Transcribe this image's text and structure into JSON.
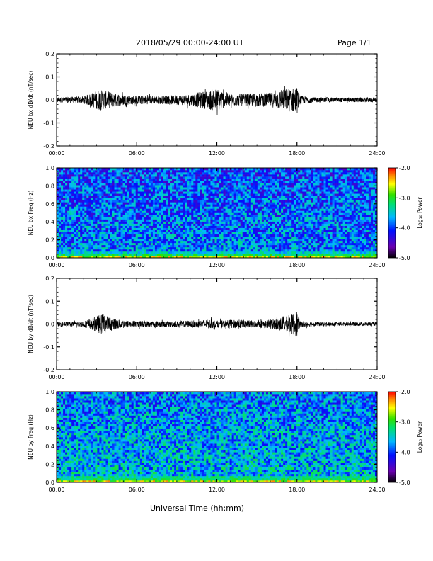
{
  "header": {
    "title": "2018/05/29  00:00-24:00 UT",
    "page": "Page 1/1",
    "xlabel": "Universal Time (hh:mm)"
  },
  "chart_data": [
    {
      "type": "line",
      "ylabel": "NEU bx dB/dt (nT/sec)",
      "xlim": [
        "00:00",
        "24:00"
      ],
      "xticks": [
        "00:00",
        "06:00",
        "12:00",
        "18:00",
        "24:00"
      ],
      "ylim": [
        -0.2,
        0.2
      ],
      "yticks": [
        "-0.2",
        "-0.1",
        "0.0",
        "0.1",
        "0.2"
      ],
      "color": "#000000",
      "envelope": {
        "hours": [
          0,
          2,
          3.2,
          3.6,
          4.4,
          5.5,
          8,
          10,
          11.2,
          12,
          12.6,
          13.5,
          15,
          16,
          17.3,
          17.8,
          18,
          18.2,
          19,
          21,
          24
        ],
        "amplitude": [
          0.012,
          0.015,
          0.045,
          0.04,
          0.03,
          0.02,
          0.018,
          0.025,
          0.04,
          0.05,
          0.035,
          0.025,
          0.03,
          0.03,
          0.05,
          0.055,
          0.06,
          0.02,
          0.012,
          0.01,
          0.01
        ]
      }
    },
    {
      "type": "heatmap",
      "ylabel": "NEU bx Freq (Hz)",
      "xlim": [
        "00:00",
        "24:00"
      ],
      "xticks": [
        "00:00",
        "06:00",
        "12:00",
        "18:00",
        "24:00"
      ],
      "ylim": [
        0.0,
        1.0
      ],
      "yticks": [
        "0.0",
        "0.2",
        "0.4",
        "0.6",
        "0.8",
        "1.0"
      ],
      "colorbar": {
        "label": "Log₁₀ Power",
        "range": [
          -5.0,
          -2.0
        ],
        "ticks": [
          "-2.0",
          "-3.0",
          "-4.0",
          "-5.0"
        ]
      },
      "background_log_power": -4.0,
      "low_freq_log_power": -2.8
    },
    {
      "type": "line",
      "ylabel": "NEU by dB/dt (nT/sec)",
      "xlim": [
        "00:00",
        "24:00"
      ],
      "xticks": [
        "00:00",
        "06:00",
        "12:00",
        "18:00",
        "24:00"
      ],
      "ylim": [
        -0.2,
        0.2
      ],
      "yticks": [
        "-0.2",
        "-0.1",
        "0.0",
        "0.1",
        "0.2"
      ],
      "color": "#000000",
      "envelope": {
        "hours": [
          0,
          2,
          3.2,
          3.5,
          4.2,
          5.5,
          8,
          10,
          11.5,
          12,
          13.5,
          15,
          16,
          17.3,
          17.8,
          18,
          18.2,
          19,
          21,
          24
        ],
        "amplitude": [
          0.01,
          0.012,
          0.04,
          0.045,
          0.025,
          0.015,
          0.012,
          0.015,
          0.02,
          0.015,
          0.02,
          0.015,
          0.02,
          0.035,
          0.05,
          0.06,
          0.015,
          0.01,
          0.008,
          0.008
        ]
      }
    },
    {
      "type": "heatmap",
      "ylabel": "NEU by Freq (Hz)",
      "xlim": [
        "00:00",
        "24:00"
      ],
      "xticks": [
        "00:00",
        "06:00",
        "12:00",
        "18:00",
        "24:00"
      ],
      "ylim": [
        0.0,
        1.0
      ],
      "yticks": [
        "0.0",
        "0.2",
        "0.4",
        "0.6",
        "0.8",
        "1.0"
      ],
      "colorbar": {
        "label": "Log₁₀ Power",
        "range": [
          -5.0,
          -2.0
        ],
        "ticks": [
          "-2.0",
          "-3.0",
          "-4.0",
          "-5.0"
        ]
      },
      "background_log_power": -3.8,
      "low_freq_log_power": -2.8
    }
  ]
}
